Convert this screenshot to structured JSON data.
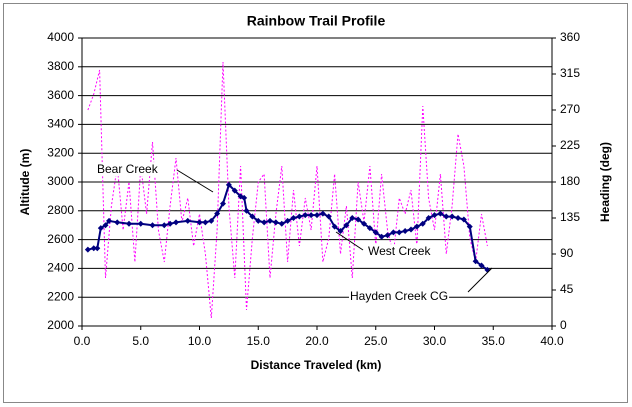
{
  "chart_data": {
    "type": "line",
    "title": "Rainbow Trail Profile",
    "x_label": "Distance Traveled (km)",
    "y_label": "Altitude (m)",
    "y2_label": "Heading (deg)",
    "xlim": [
      0,
      40
    ],
    "xticks": [
      {
        "value": 0,
        "label": "0.0"
      },
      {
        "value": 5,
        "label": "5.0"
      },
      {
        "value": 10,
        "label": "10.0"
      },
      {
        "value": 15,
        "label": "15.0"
      },
      {
        "value": 20,
        "label": "20.0"
      },
      {
        "value": 25,
        "label": "25.0"
      },
      {
        "value": 30,
        "label": "30.0"
      },
      {
        "value": 35,
        "label": "35.0"
      },
      {
        "value": 40,
        "label": "40.0"
      }
    ],
    "ylim": [
      2000,
      4000
    ],
    "yticks": [
      2000,
      2200,
      2400,
      2600,
      2800,
      3000,
      3200,
      3400,
      3600,
      3800,
      4000
    ],
    "y2lim": [
      0,
      360
    ],
    "y2ticks": [
      0,
      45,
      90,
      135,
      180,
      225,
      270,
      315,
      360
    ],
    "grid": true,
    "annotations": [
      "Bear Creek",
      "West Creek",
      "Hayden Creek CG"
    ],
    "series": [
      {
        "name": "Altitude",
        "color": "#000080",
        "x": [
          0.5,
          1.0,
          1.3,
          1.6,
          2.0,
          2.3,
          3,
          4,
          5,
          6,
          7,
          7.5,
          8,
          9,
          10,
          10.5,
          11,
          11.5,
          12,
          12.5,
          13,
          13.5,
          13.8,
          14,
          14.5,
          15,
          15.5,
          16,
          16.5,
          17,
          17.5,
          18,
          18.5,
          19,
          19.5,
          20,
          20.5,
          21,
          21.5,
          22,
          22.5,
          23,
          23.5,
          24,
          24.5,
          25,
          25.5,
          26,
          26.5,
          27,
          27.5,
          28,
          28.5,
          29,
          29.5,
          30,
          30.5,
          31,
          31.5,
          32,
          32.5,
          33,
          33.5,
          34,
          34.5
        ],
        "values": [
          2530,
          2540,
          2540,
          2680,
          2700,
          2730,
          2720,
          2710,
          2710,
          2700,
          2700,
          2710,
          2720,
          2730,
          2720,
          2720,
          2730,
          2780,
          2850,
          2980,
          2940,
          2900,
          2890,
          2800,
          2760,
          2730,
          2720,
          2730,
          2720,
          2710,
          2730,
          2750,
          2760,
          2770,
          2770,
          2770,
          2780,
          2760,
          2690,
          2660,
          2700,
          2750,
          2740,
          2710,
          2680,
          2650,
          2620,
          2630,
          2650,
          2650,
          2660,
          2670,
          2690,
          2710,
          2750,
          2770,
          2780,
          2760,
          2760,
          2750,
          2740,
          2690,
          2450,
          2420,
          2390
        ]
      },
      {
        "name": "Heading",
        "color": "#ff00ff",
        "axis": "y2",
        "x": [
          0.5,
          1.0,
          1.5,
          2.0,
          2.5,
          3,
          3.5,
          4,
          4.5,
          5,
          5.5,
          6,
          6.5,
          7,
          7.5,
          8,
          8.5,
          9,
          9.5,
          10,
          10.5,
          11,
          11.5,
          12,
          12.5,
          13,
          13.5,
          14,
          14.5,
          15,
          15.5,
          16,
          16.5,
          17,
          17.5,
          18,
          18.5,
          19,
          19.5,
          20,
          20.5,
          21,
          21.5,
          22,
          22.5,
          23,
          23.5,
          24,
          24.5,
          25,
          25.5,
          26,
          26.5,
          27,
          27.5,
          28,
          28.5,
          29,
          29.5,
          30,
          30.5,
          31,
          31.5,
          32,
          32.5,
          33,
          33.5,
          34,
          34.5
        ],
        "values": [
          270,
          290,
          320,
          60,
          150,
          200,
          120,
          180,
          80,
          200,
          140,
          230,
          120,
          80,
          150,
          210,
          130,
          160,
          100,
          140,
          90,
          10,
          120,
          330,
          150,
          60,
          200,
          20,
          110,
          180,
          190,
          60,
          140,
          200,
          80,
          170,
          100,
          160,
          120,
          200,
          80,
          110,
          190,
          90,
          150,
          60,
          180,
          130,
          200,
          100,
          190,
          120,
          90,
          160,
          140,
          170,
          100,
          275,
          160,
          120,
          190,
          90,
          150,
          240,
          200,
          110,
          80,
          140,
          100
        ]
      }
    ]
  }
}
